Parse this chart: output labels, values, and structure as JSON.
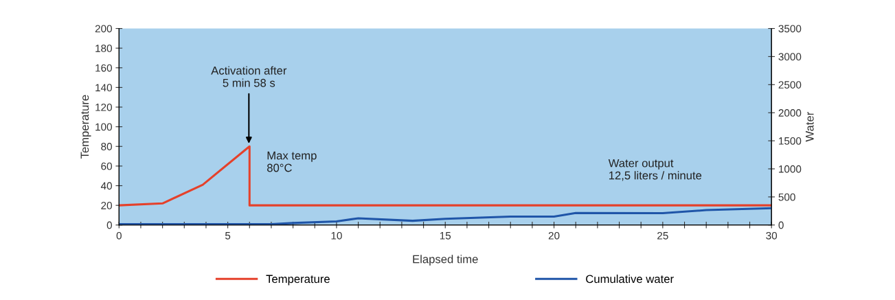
{
  "chart_data": {
    "type": "line",
    "xlabel": "Elapsed time",
    "ylabel": "Temperature",
    "y2label": "Water",
    "series": [
      {
        "name": "Temperature",
        "color": "#e5412b",
        "x": [
          0,
          2,
          3.85,
          6,
          6,
          30
        ],
        "values": [
          20,
          22,
          41,
          80,
          20,
          20
        ]
      },
      {
        "name": "Cumulative water",
        "color": "#1f55a8",
        "axis": "y2",
        "x": [
          0,
          7,
          8,
          10,
          11,
          13.5,
          15,
          18,
          20,
          21,
          25,
          27,
          30
        ],
        "values": [
          15,
          15,
          35,
          65,
          120,
          75,
          110,
          150,
          150,
          215,
          210,
          265,
          300
        ]
      }
    ],
    "xlim": [
      0,
      30
    ],
    "xticks": [
      0,
      {
        "value": 1,
        "label": null
      },
      {
        "value": 2,
        "label": null
      },
      {
        "value": 3,
        "label": null
      },
      {
        "value": 4,
        "label": null
      },
      5,
      {
        "value": 6,
        "label": null
      },
      {
        "value": 7,
        "label": null
      },
      {
        "value": 8,
        "label": null
      },
      {
        "value": 9,
        "label": null
      },
      10,
      {
        "value": 11,
        "label": null
      },
      {
        "value": 12,
        "label": null
      },
      {
        "value": 13,
        "label": null
      },
      {
        "value": 14,
        "label": null
      },
      15,
      {
        "value": 16,
        "label": null
      },
      {
        "value": 17,
        "label": null
      },
      {
        "value": 18,
        "label": null
      },
      {
        "value": 19,
        "label": null
      },
      20,
      {
        "value": 21,
        "label": null
      },
      {
        "value": 22,
        "label": null
      },
      {
        "value": 23,
        "label": null
      },
      {
        "value": 24,
        "label": null
      },
      25,
      {
        "value": 26,
        "label": null
      },
      {
        "value": 27,
        "label": null
      },
      {
        "value": 28,
        "label": null
      },
      {
        "value": 29,
        "label": null
      },
      30
    ],
    "ylim": [
      0,
      200
    ],
    "yticks": [
      0,
      20,
      40,
      60,
      80,
      100,
      120,
      140,
      160,
      180,
      200
    ],
    "y2lim": [
      0,
      3500
    ],
    "y2ticks": [
      0,
      500,
      1000,
      1500,
      2000,
      2500,
      3000,
      3500
    ],
    "annotations": [
      {
        "text": "Activation after\n5 min 58 s",
        "x": 5.97,
        "y": 80
      },
      {
        "text": "Max temp\n80°C",
        "x": 6,
        "y": 80
      },
      "Water output\n12,5 liters / minute"
    ],
    "legend": "bottom",
    "grid": false,
    "marker": "none",
    "line_style": "solid"
  }
}
